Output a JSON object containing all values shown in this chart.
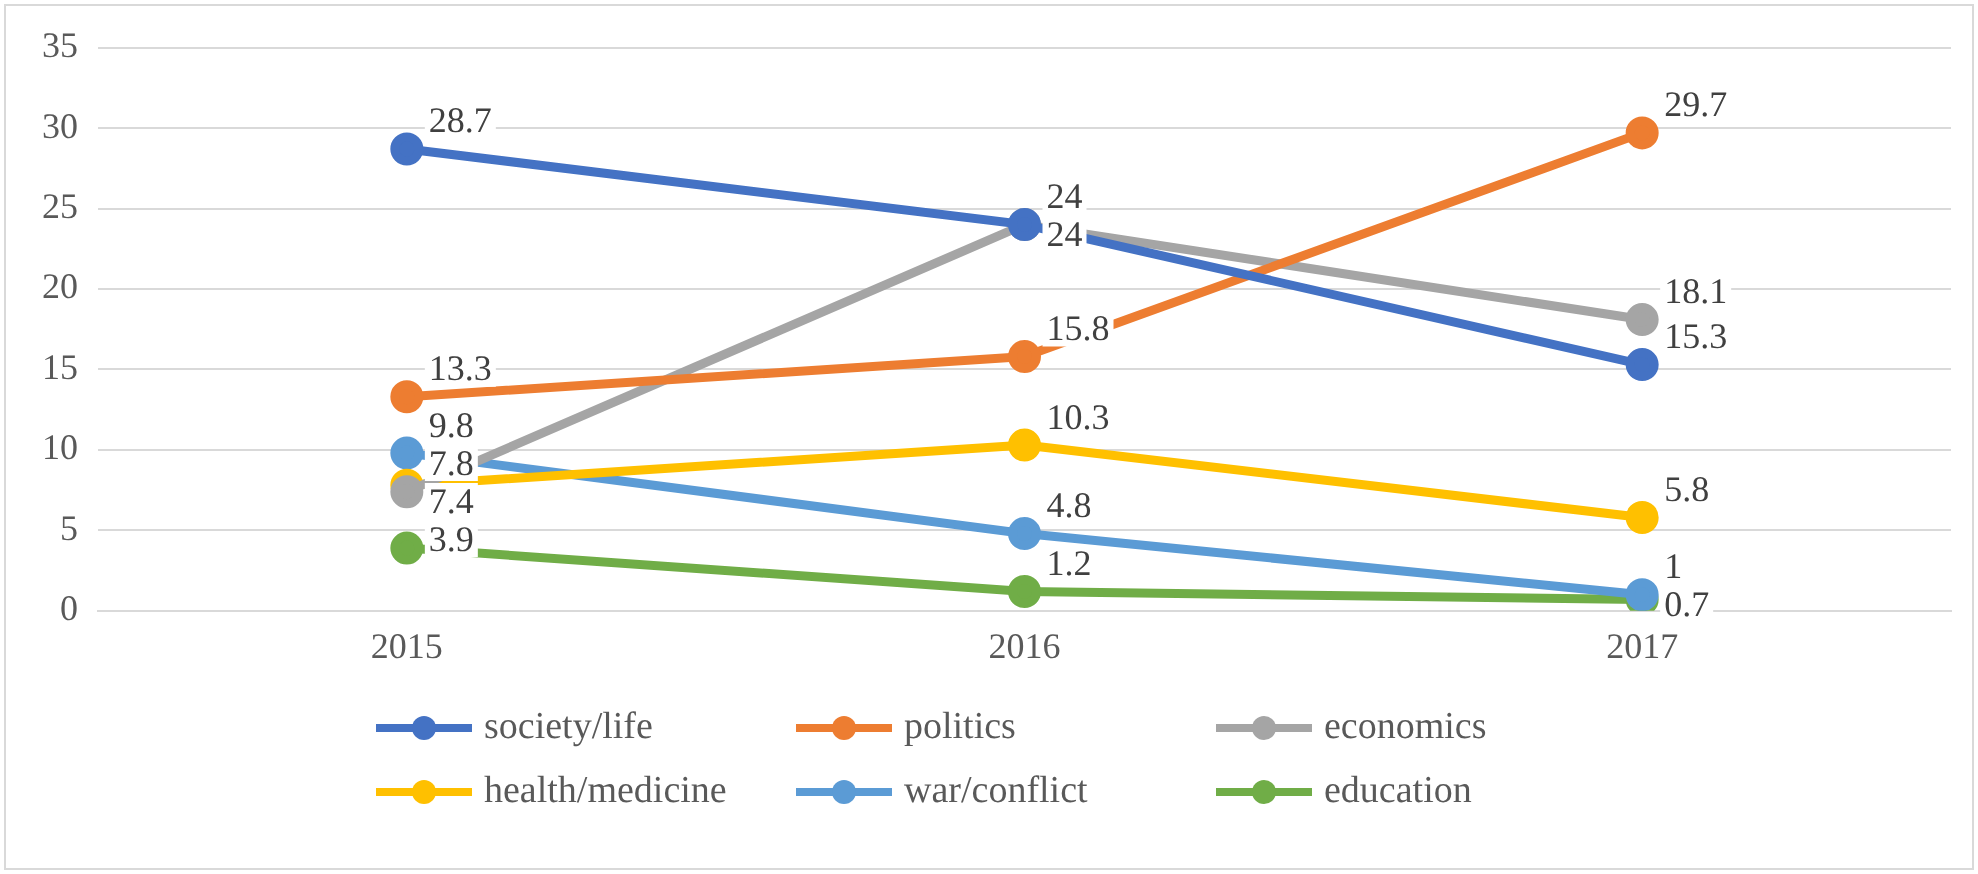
{
  "chart_data": {
    "type": "line",
    "categories": [
      "2015",
      "2016",
      "2017"
    ],
    "series": [
      {
        "name": "society/life",
        "color": "#4472c4",
        "values": [
          28.7,
          24,
          15.3
        ]
      },
      {
        "name": "politics",
        "color": "#ed7d31",
        "values": [
          13.3,
          15.8,
          29.7
        ]
      },
      {
        "name": "economics",
        "color": "#a5a5a5",
        "values": [
          7.4,
          24,
          18.1
        ]
      },
      {
        "name": "health/medicine",
        "color": "#ffc000",
        "values": [
          7.8,
          10.3,
          5.8
        ]
      },
      {
        "name": "war/conflict",
        "color": "#5b9bd5",
        "values": [
          9.8,
          4.8,
          1
        ]
      },
      {
        "name": "education",
        "color": "#70ad47",
        "values": [
          3.9,
          1.2,
          0.7
        ]
      }
    ],
    "ylim": [
      0,
      35
    ],
    "yticks": [
      0,
      5,
      10,
      15,
      20,
      25,
      30,
      35
    ],
    "grid": "y",
    "legend": "bottom",
    "marker": "circle",
    "line_style": "solid",
    "data_labels": true
  }
}
